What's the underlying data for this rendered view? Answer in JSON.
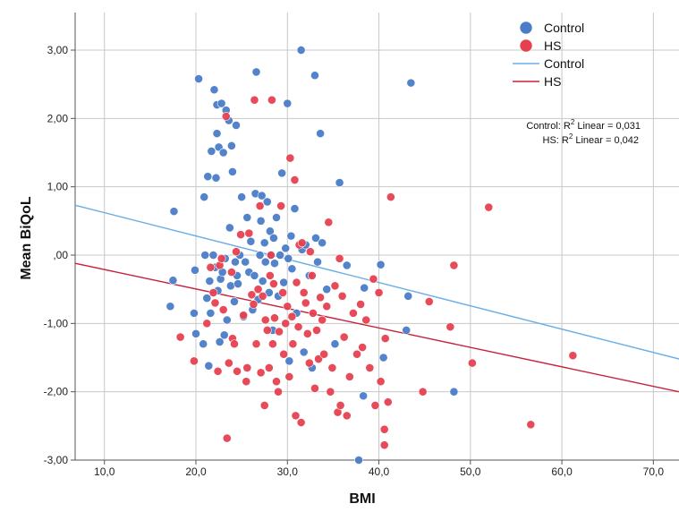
{
  "chart_data": {
    "type": "scatter",
    "xlabel": "BMI",
    "ylabel": "Mean BiQoL",
    "xlim": [
      6.8,
      72.8
    ],
    "ylim": [
      -3.0,
      3.55
    ],
    "x_ticks": [
      "10,0",
      "20,0",
      "30,0",
      "40,0",
      "50,0",
      "60,0",
      "70,0"
    ],
    "x_tick_values": [
      10,
      20,
      30,
      40,
      50,
      60,
      70
    ],
    "y_ticks": [
      "3,00",
      "2,00",
      "1,00",
      ",00",
      "-1,00",
      "-2,00",
      "-3,00"
    ],
    "y_tick_values": [
      3,
      2,
      1,
      0,
      -1,
      -2,
      -3
    ],
    "grid": true,
    "legend_position": "top-right",
    "legend": [
      {
        "label": "Control",
        "kind": "marker",
        "color": "#4a7cc7"
      },
      {
        "label": "HS",
        "kind": "marker",
        "color": "#e6404f"
      },
      {
        "label": "Control",
        "kind": "line",
        "color": "#6aaee6"
      },
      {
        "label": "HS",
        "kind": "line",
        "color": "#c8203a"
      }
    ],
    "annotation": {
      "line1_prefix": "Control: R",
      "line1_suffix": " Linear = 0,031",
      "line2_prefix": "HS: R",
      "line2_suffix": " Linear = 0,042",
      "superscript": "2"
    },
    "series": [
      {
        "name": "Control",
        "color": "#4a7cc7",
        "points": [
          [
            17.2,
            -0.75
          ],
          [
            17.5,
            -0.37
          ],
          [
            17.6,
            0.64
          ],
          [
            19.8,
            -0.85
          ],
          [
            19.9,
            -0.22
          ],
          [
            20.0,
            -1.15
          ],
          [
            20.3,
            2.58
          ],
          [
            20.8,
            -1.3
          ],
          [
            20.9,
            0.85
          ],
          [
            21.0,
            0.0
          ],
          [
            21.2,
            -0.63
          ],
          [
            21.3,
            1.15
          ],
          [
            21.4,
            -1.62
          ],
          [
            21.5,
            -0.38
          ],
          [
            21.6,
            -0.85
          ],
          [
            21.7,
            1.52
          ],
          [
            21.9,
            0.0
          ],
          [
            22.0,
            2.42
          ],
          [
            22.1,
            -0.18
          ],
          [
            22.2,
            1.13
          ],
          [
            22.3,
            2.2
          ],
          [
            22.3,
            1.78
          ],
          [
            22.4,
            -0.52
          ],
          [
            22.5,
            1.58
          ],
          [
            22.6,
            -1.27
          ],
          [
            22.7,
            -0.35
          ],
          [
            22.8,
            2.22
          ],
          [
            22.9,
            -0.25
          ],
          [
            23.0,
            1.5
          ],
          [
            23.1,
            -1.17
          ],
          [
            23.2,
            -0.05
          ],
          [
            23.3,
            2.12
          ],
          [
            23.4,
            -0.95
          ],
          [
            23.6,
            1.97
          ],
          [
            23.7,
            0.4
          ],
          [
            23.8,
            -0.45
          ],
          [
            23.9,
            1.6
          ],
          [
            24.0,
            1.22
          ],
          [
            24.2,
            -0.68
          ],
          [
            24.3,
            -0.1
          ],
          [
            24.4,
            1.9
          ],
          [
            24.5,
            -0.3
          ],
          [
            24.6,
            -0.42
          ],
          [
            24.8,
            0.0
          ],
          [
            25.0,
            0.85
          ],
          [
            25.2,
            -0.9
          ],
          [
            25.4,
            -0.1
          ],
          [
            25.6,
            0.55
          ],
          [
            25.8,
            -0.25
          ],
          [
            26.0,
            0.2
          ],
          [
            26.2,
            -0.8
          ],
          [
            26.4,
            -0.3
          ],
          [
            26.5,
            0.9
          ],
          [
            26.6,
            2.68
          ],
          [
            26.8,
            -0.65
          ],
          [
            27.0,
            0.0
          ],
          [
            27.1,
            0.5
          ],
          [
            27.2,
            0.87
          ],
          [
            27.3,
            -0.38
          ],
          [
            27.5,
            0.18
          ],
          [
            27.6,
            -0.1
          ],
          [
            27.8,
            0.78
          ],
          [
            28.0,
            -0.55
          ],
          [
            28.1,
            0.35
          ],
          [
            28.2,
            0.0
          ],
          [
            28.4,
            -1.1
          ],
          [
            28.5,
            0.25
          ],
          [
            28.6,
            -0.12
          ],
          [
            28.8,
            0.55
          ],
          [
            29.0,
            -0.6
          ],
          [
            29.2,
            0.0
          ],
          [
            29.4,
            1.2
          ],
          [
            29.6,
            -0.4
          ],
          [
            29.8,
            0.1
          ],
          [
            30.0,
            2.22
          ],
          [
            30.1,
            -0.05
          ],
          [
            30.2,
            -1.55
          ],
          [
            30.4,
            0.28
          ],
          [
            30.5,
            -0.2
          ],
          [
            30.8,
            0.68
          ],
          [
            31.0,
            -0.85
          ],
          [
            31.5,
            3.0
          ],
          [
            31.6,
            0.08
          ],
          [
            31.8,
            -1.42
          ],
          [
            32.0,
            0.15
          ],
          [
            32.4,
            -0.3
          ],
          [
            32.7,
            -1.65
          ],
          [
            33.0,
            2.63
          ],
          [
            33.1,
            0.25
          ],
          [
            33.3,
            -0.1
          ],
          [
            33.6,
            1.78
          ],
          [
            33.8,
            0.18
          ],
          [
            34.3,
            -0.5
          ],
          [
            35.2,
            -1.3
          ],
          [
            35.7,
            1.06
          ],
          [
            36.5,
            -0.15
          ],
          [
            37.8,
            -3.0
          ],
          [
            38.3,
            -2.06
          ],
          [
            38.4,
            -0.48
          ],
          [
            40.2,
            -0.14
          ],
          [
            40.5,
            -1.5
          ],
          [
            43.2,
            -0.6
          ],
          [
            43.5,
            2.52
          ],
          [
            43.0,
            -1.1
          ],
          [
            48.2,
            -2.0
          ]
        ]
      },
      {
        "name": "HS",
        "color": "#e6404f",
        "points": [
          [
            18.3,
            -1.2
          ],
          [
            19.8,
            -1.55
          ],
          [
            21.2,
            -1.0
          ],
          [
            21.6,
            -0.18
          ],
          [
            21.9,
            -0.55
          ],
          [
            22.1,
            -0.7
          ],
          [
            22.4,
            -1.7
          ],
          [
            22.6,
            -0.15
          ],
          [
            22.8,
            -0.05
          ],
          [
            23.0,
            -0.8
          ],
          [
            23.3,
            2.03
          ],
          [
            23.4,
            -2.68
          ],
          [
            23.6,
            -1.58
          ],
          [
            23.9,
            -0.25
          ],
          [
            24.0,
            -1.22
          ],
          [
            24.2,
            -1.3
          ],
          [
            24.4,
            0.05
          ],
          [
            24.5,
            -1.7
          ],
          [
            24.9,
            0.3
          ],
          [
            25.2,
            -0.88
          ],
          [
            25.5,
            -1.85
          ],
          [
            25.6,
            -1.65
          ],
          [
            25.8,
            0.32
          ],
          [
            26.1,
            -0.58
          ],
          [
            26.3,
            -0.72
          ],
          [
            26.4,
            2.27
          ],
          [
            26.6,
            -1.3
          ],
          [
            26.8,
            -0.5
          ],
          [
            27.0,
            0.72
          ],
          [
            27.1,
            -1.72
          ],
          [
            27.3,
            -0.6
          ],
          [
            27.5,
            -2.2
          ],
          [
            27.6,
            -0.95
          ],
          [
            27.8,
            -1.1
          ],
          [
            28.0,
            -1.65
          ],
          [
            28.1,
            -0.3
          ],
          [
            28.2,
            0.0
          ],
          [
            28.3,
            2.27
          ],
          [
            28.4,
            -1.3
          ],
          [
            28.5,
            -0.42
          ],
          [
            28.6,
            -0.92
          ],
          [
            28.8,
            -1.85
          ],
          [
            29.0,
            -2.0
          ],
          [
            29.1,
            -1.12
          ],
          [
            29.3,
            0.72
          ],
          [
            29.5,
            -0.55
          ],
          [
            29.6,
            -1.45
          ],
          [
            29.8,
            -1.0
          ],
          [
            30.0,
            -0.75
          ],
          [
            30.2,
            -1.78
          ],
          [
            30.3,
            1.42
          ],
          [
            30.5,
            -0.9
          ],
          [
            30.6,
            -1.3
          ],
          [
            30.8,
            1.1
          ],
          [
            30.9,
            -2.35
          ],
          [
            31.0,
            -0.4
          ],
          [
            31.2,
            -1.05
          ],
          [
            31.3,
            0.15
          ],
          [
            31.5,
            -2.45
          ],
          [
            31.6,
            0.18
          ],
          [
            31.8,
            -0.55
          ],
          [
            32.0,
            -0.7
          ],
          [
            32.2,
            -1.15
          ],
          [
            32.4,
            -1.58
          ],
          [
            32.5,
            0.05
          ],
          [
            32.7,
            -0.3
          ],
          [
            32.8,
            -0.85
          ],
          [
            33.0,
            -1.95
          ],
          [
            33.2,
            -1.1
          ],
          [
            33.4,
            -1.52
          ],
          [
            33.6,
            -0.62
          ],
          [
            33.8,
            -0.95
          ],
          [
            34.0,
            -1.45
          ],
          [
            34.3,
            -0.75
          ],
          [
            34.5,
            0.48
          ],
          [
            34.7,
            -2.0
          ],
          [
            34.9,
            -1.65
          ],
          [
            35.2,
            -0.45
          ],
          [
            35.5,
            -2.3
          ],
          [
            35.7,
            -0.05
          ],
          [
            35.8,
            -2.2
          ],
          [
            36.0,
            -0.6
          ],
          [
            36.2,
            -1.2
          ],
          [
            36.5,
            -2.35
          ],
          [
            36.8,
            -1.78
          ],
          [
            37.2,
            -0.85
          ],
          [
            37.6,
            -1.45
          ],
          [
            38.0,
            -0.72
          ],
          [
            38.2,
            -1.35
          ],
          [
            38.6,
            -0.95
          ],
          [
            39.0,
            -1.65
          ],
          [
            39.4,
            -0.35
          ],
          [
            39.6,
            -2.2
          ],
          [
            40.0,
            -0.55
          ],
          [
            40.2,
            -1.85
          ],
          [
            40.6,
            -2.55
          ],
          [
            40.6,
            -2.78
          ],
          [
            40.7,
            -1.22
          ],
          [
            41.0,
            -2.15
          ],
          [
            41.3,
            0.85
          ],
          [
            44.8,
            -2.0
          ],
          [
            45.5,
            -0.68
          ],
          [
            47.8,
            -1.05
          ],
          [
            48.2,
            -0.15
          ],
          [
            50.2,
            -1.58
          ],
          [
            52.0,
            0.7
          ],
          [
            56.6,
            -2.48
          ],
          [
            61.2,
            -1.47
          ]
        ]
      }
    ],
    "fit_lines": [
      {
        "name": "Control",
        "color": "#6aaee6",
        "x": [
          6.8,
          72.8
        ],
        "y": [
          0.73,
          -1.52
        ]
      },
      {
        "name": "HS",
        "color": "#c8203a",
        "x": [
          6.8,
          72.8
        ],
        "y": [
          -0.12,
          -2.0
        ]
      }
    ]
  }
}
